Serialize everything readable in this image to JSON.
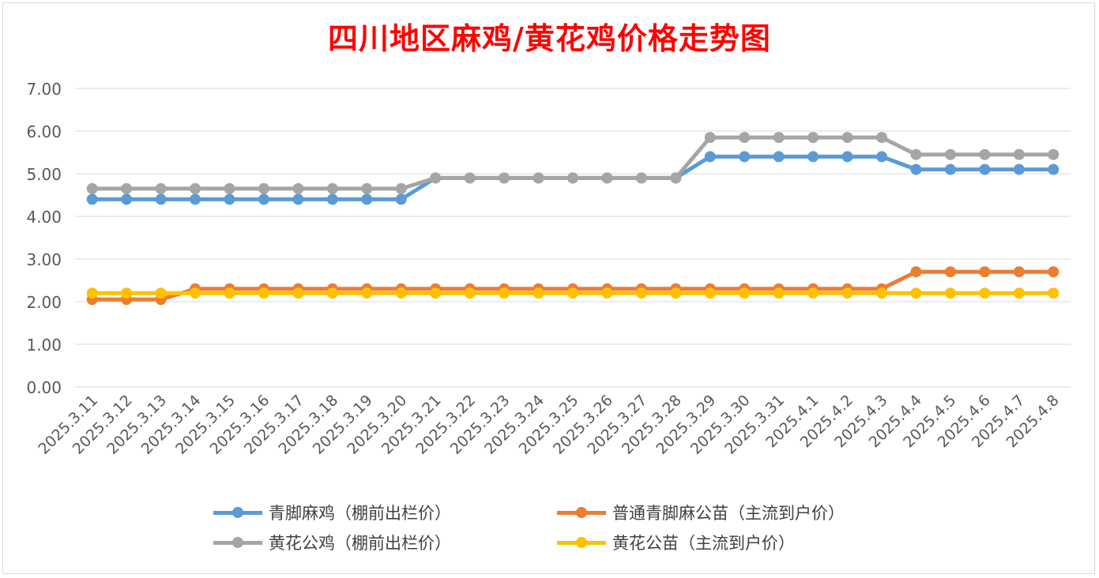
{
  "chart_data": {
    "type": "line",
    "title": "四川地区麻鸡/黄花鸡价格走势图",
    "xlabel": "",
    "ylabel": "",
    "ylim": [
      0,
      7
    ],
    "yticks": [
      "0.00",
      "1.00",
      "2.00",
      "3.00",
      "4.00",
      "5.00",
      "6.00",
      "7.00"
    ],
    "grid": true,
    "legend_position": "bottom",
    "categories": [
      "2025.3.11",
      "2025.3.12",
      "2025.3.13",
      "2025.3.14",
      "2025.3.15",
      "2025.3.16",
      "2025.3.17",
      "2025.3.18",
      "2025.3.19",
      "2025.3.20",
      "2025.3.21",
      "2025.3.22",
      "2025.3.23",
      "2025.3.24",
      "2025.3.25",
      "2025.3.26",
      "2025.3.27",
      "2025.3.28",
      "2025.3.29",
      "2025.3.30",
      "2025.3.31",
      "2025.4.1",
      "2025.4.2",
      "2025.4.3",
      "2025.4.4",
      "2025.4.5",
      "2025.4.6",
      "2025.4.7",
      "2025.4.8"
    ],
    "series": [
      {
        "name": "青脚麻鸡（棚前出栏价）",
        "color": "#5b9bd5",
        "values": [
          4.4,
          4.4,
          4.4,
          4.4,
          4.4,
          4.4,
          4.4,
          4.4,
          4.4,
          4.4,
          4.9,
          4.9,
          4.9,
          4.9,
          4.9,
          4.9,
          4.9,
          4.9,
          5.4,
          5.4,
          5.4,
          5.4,
          5.4,
          5.4,
          5.1,
          5.1,
          5.1,
          5.1,
          5.1
        ]
      },
      {
        "name": "普通青脚麻公苗（主流到户价）",
        "color": "#ed7d31",
        "values": [
          2.05,
          2.05,
          2.05,
          2.3,
          2.3,
          2.3,
          2.3,
          2.3,
          2.3,
          2.3,
          2.3,
          2.3,
          2.3,
          2.3,
          2.3,
          2.3,
          2.3,
          2.3,
          2.3,
          2.3,
          2.3,
          2.3,
          2.3,
          2.3,
          2.7,
          2.7,
          2.7,
          2.7,
          2.7
        ]
      },
      {
        "name": "黄花公鸡（棚前出栏价）",
        "color": "#a5a5a5",
        "values": [
          4.65,
          4.65,
          4.65,
          4.65,
          4.65,
          4.65,
          4.65,
          4.65,
          4.65,
          4.65,
          4.9,
          4.9,
          4.9,
          4.9,
          4.9,
          4.9,
          4.9,
          4.9,
          5.85,
          5.85,
          5.85,
          5.85,
          5.85,
          5.85,
          5.45,
          5.45,
          5.45,
          5.45,
          5.45
        ]
      },
      {
        "name": "黄花公苗（主流到户价）",
        "color": "#ffc000",
        "values": [
          2.2,
          2.2,
          2.2,
          2.2,
          2.2,
          2.2,
          2.2,
          2.2,
          2.2,
          2.2,
          2.2,
          2.2,
          2.2,
          2.2,
          2.2,
          2.2,
          2.2,
          2.2,
          2.2,
          2.2,
          2.2,
          2.2,
          2.2,
          2.2,
          2.2,
          2.2,
          2.2,
          2.2,
          2.2
        ]
      }
    ]
  }
}
